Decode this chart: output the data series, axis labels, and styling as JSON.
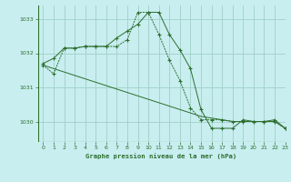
{
  "title": "Graphe pression niveau de la mer (hPa)",
  "bg_color": "#c8eef0",
  "grid_color": "#a0d0c8",
  "line_color": "#2d6e2d",
  "xlim": [
    -0.5,
    23
  ],
  "ylim": [
    1029.4,
    1033.4
  ],
  "yticks": [
    1030,
    1031,
    1032,
    1033
  ],
  "xticks": [
    0,
    1,
    2,
    3,
    4,
    5,
    6,
    7,
    8,
    9,
    10,
    11,
    12,
    13,
    14,
    15,
    16,
    17,
    18,
    19,
    20,
    21,
    22,
    23
  ],
  "series1_x": [
    0,
    1,
    2,
    3,
    4,
    5,
    6,
    7,
    8,
    9,
    10,
    11,
    12,
    13,
    14,
    15,
    16,
    17,
    18,
    19,
    20,
    21,
    22,
    23
  ],
  "series1_y": [
    1031.7,
    1031.85,
    1032.15,
    1032.15,
    1032.2,
    1032.2,
    1032.2,
    1032.45,
    1032.65,
    1032.85,
    1033.2,
    1033.2,
    1032.55,
    1032.1,
    1031.55,
    1030.35,
    1029.8,
    1029.8,
    1029.8,
    1030.05,
    1030.0,
    1030.0,
    1030.05,
    1029.8
  ],
  "series2_x": [
    0,
    1,
    2,
    3,
    4,
    5,
    6,
    7,
    8,
    9,
    10,
    11,
    12,
    13,
    14,
    15,
    16,
    17,
    18,
    19,
    20,
    21,
    22,
    23
  ],
  "series2_y": [
    1031.65,
    1031.55,
    1031.45,
    1031.35,
    1031.25,
    1031.15,
    1031.05,
    1030.95,
    1030.85,
    1030.75,
    1030.65,
    1030.55,
    1030.45,
    1030.35,
    1030.25,
    1030.15,
    1030.1,
    1030.05,
    1030.0,
    1030.0,
    1030.0,
    1030.0,
    1030.0,
    1029.8
  ],
  "series3_x": [
    0,
    1,
    2,
    3,
    4,
    5,
    6,
    7,
    8,
    9,
    10,
    11,
    12,
    13,
    14,
    15,
    16,
    17,
    18,
    19,
    20,
    21,
    22,
    23
  ],
  "series3_y": [
    1031.65,
    1031.4,
    1032.15,
    1032.15,
    1032.2,
    1032.2,
    1032.2,
    1032.2,
    1032.4,
    1033.2,
    1033.2,
    1032.55,
    1031.8,
    1031.2,
    1030.4,
    1030.05,
    1030.05,
    1030.05,
    1030.0,
    1030.0,
    1030.0,
    1030.0,
    1030.0,
    1029.8
  ]
}
